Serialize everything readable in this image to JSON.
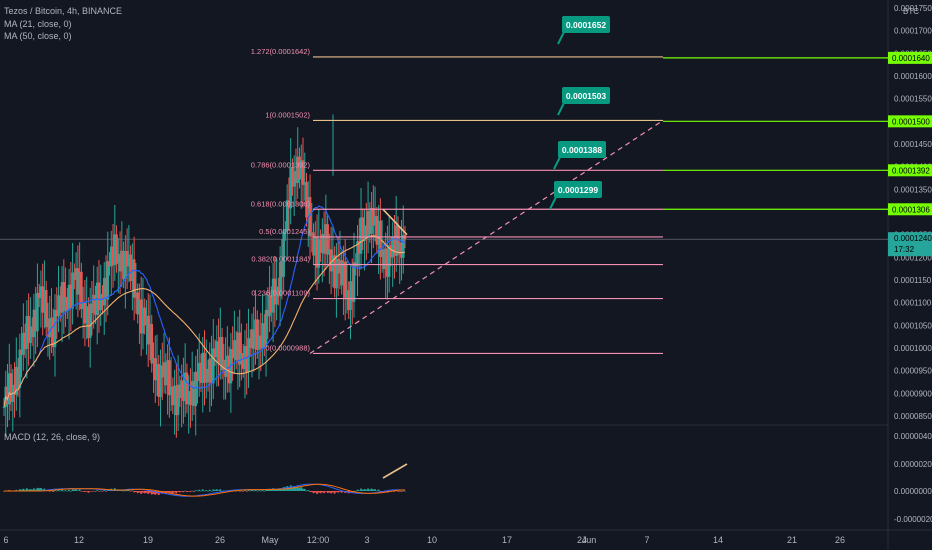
{
  "legend": {
    "symbol": "Tezos / Bitcoin, 4h, BINANCE",
    "ma21": "MA (21, close, 0)",
    "ma50": "MA (50, close, 0)",
    "macd": "MACD (12, 26, close, 9)"
  },
  "currency": "BTC",
  "last_price": "0.0001240",
  "countdown": "17:32",
  "colors": {
    "up": "#26a69a",
    "down": "#ef5350",
    "ma21": "#2962ff",
    "ma50": "#f6b26b",
    "fib": "#f48fb1",
    "fib_top": "#e6c08a",
    "green": "#76ff03",
    "callout": "#089981"
  },
  "chart_data": {
    "type": "candlestick",
    "timeframe": "4h",
    "y_axis_ticks": [
      "0.0001750",
      "0.0001700",
      "0.0001650",
      "0.0001600",
      "0.0001550",
      "0.0001500",
      "0.0001450",
      "0.0001400",
      "0.0001350",
      "0.0001300",
      "0.0001250",
      "0.0001200",
      "0.0001150",
      "0.0001100",
      "0.0001050",
      "0.0001000",
      "0.0000950",
      "0.0000900",
      "0.0000850"
    ],
    "macd_ticks": [
      "0.0000040",
      "0.0000020",
      "0.0000000",
      "-0.0000020"
    ],
    "x_axis_ticks": [
      "6",
      "12",
      "19",
      "26",
      "May",
      "12:00",
      "3",
      "10",
      "17",
      "24",
      "Jun",
      "7",
      "14",
      "21",
      "26"
    ],
    "fib_levels": [
      {
        "label": "1.272(0.0001642)",
        "price": 0.0001642
      },
      {
        "label": "1(0.0001502)",
        "price": 0.0001502
      },
      {
        "label": "0.786(0.0001392)",
        "price": 0.0001392
      },
      {
        "label": "0.618(0.0001306)",
        "price": 0.0001306
      },
      {
        "label": "0.5(0.0001245)",
        "price": 0.0001245
      },
      {
        "label": "0.382(0.0001184)",
        "price": 0.0001184
      },
      {
        "label": "0.236(0.0001109)",
        "price": 0.0001109
      },
      {
        "label": "0(0.0000988)",
        "price": 9.88e-05
      }
    ],
    "targets": [
      {
        "label": "0.0001652",
        "price": 0.0001652
      },
      {
        "label": "0.0001503",
        "price": 0.0001503
      },
      {
        "label": "0.0001388",
        "price": 0.0001388
      },
      {
        "label": "0.0001299",
        "price": 0.0001299
      }
    ],
    "right_tags": [
      "0.0001640",
      "0.0001500",
      "0.0001392",
      "0.0001306"
    ],
    "close_series": [
      8.7e-05,
      9.05e-05,
      9.6e-05,
      0.000101,
      0.000106,
      0.000111,
      0.000107,
      0.000105,
      0.000109,
      0.000112,
      0.000115,
      0.000111,
      0.000107,
      0.0001085,
      0.000113,
      0.000118,
      0.000121,
      0.00012,
      0.000116,
      0.000111,
      0.000105,
      9.9e-05,
      9.4e-05,
      9.3e-05,
      9.1e-05,
      8.9e-05,
      9e-05,
      9.2e-05,
      9.35e-05,
      9.6e-05,
      9.8e-05,
      9.75e-05,
      9.7e-05,
      9.85e-05,
      9.9e-05,
      0.0001,
      0.000102,
      0.000105,
      0.000109,
      0.000115,
      0.000126,
      0.000138,
      0.000142,
      0.00013,
      0.000124,
      0.000121,
      0.000123,
      0.000118,
      0.000115,
      0.000112,
      0.000118,
      0.000126,
      0.00013,
      0.000124,
      0.000121,
      0.00012,
      0.000123,
      0.000124
    ]
  }
}
